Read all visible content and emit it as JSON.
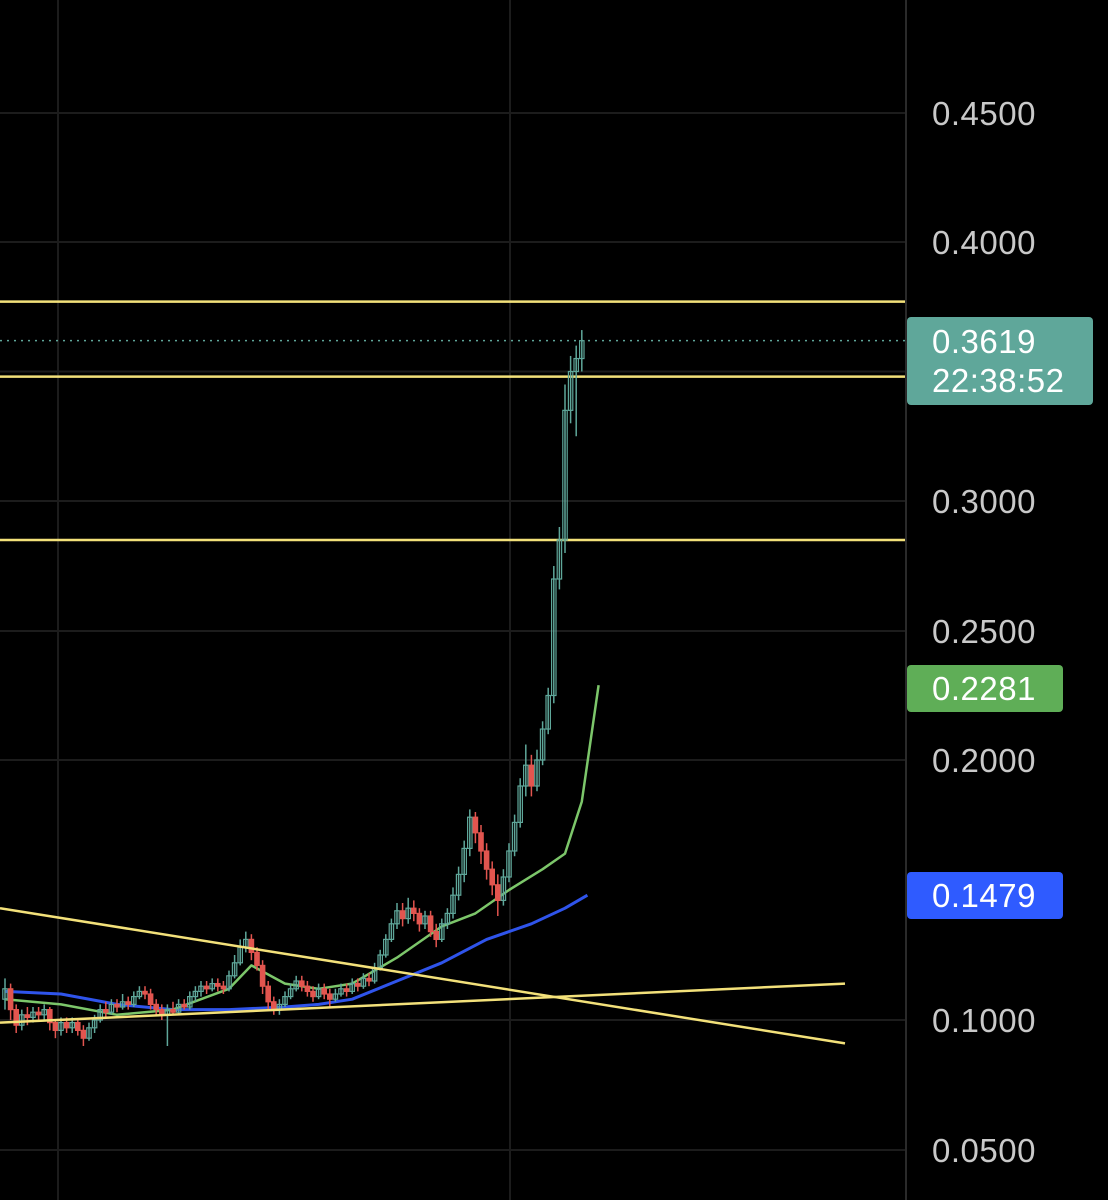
{
  "chart_data": {
    "type": "candlestick",
    "ylim": [
      0.035,
      0.495
    ],
    "y_ticks": [
      "0.4500",
      "0.4000",
      "0.3000",
      "0.2500",
      "0.2000",
      "0.1000",
      "0.0500"
    ],
    "grid": true,
    "colors": {
      "background": "#000000",
      "grid": "#1c1c1c",
      "up": "#5fa79a",
      "down": "#e2554f",
      "trendline": "#f3e17a",
      "ma_fast": "#7cc66a",
      "ma_slow": "#2f54eb",
      "last_price_tag": "#5fa79a",
      "ma_fast_tag": "#5fae57",
      "ma_slow_tag": "#2f5bff",
      "axis_text": "#c9c9c9"
    },
    "price_tag": {
      "value": "0.3619",
      "countdown": "22:38:52"
    },
    "ma_fast_tag": {
      "value": "0.2281"
    },
    "ma_slow_tag": {
      "value": "0.1479"
    },
    "horizontal_levels": [
      0.377,
      0.348,
      0.285
    ],
    "trendlines": [
      {
        "from": [
          0,
          0.143
        ],
        "to": [
          150,
          0.091
        ]
      },
      {
        "from": [
          0,
          0.099
        ],
        "to": [
          150,
          0.114
        ]
      }
    ],
    "candles": [
      [
        0.108,
        0.112,
        0.116,
        0.104
      ],
      [
        0.112,
        0.104,
        0.114,
        0.1
      ],
      [
        0.104,
        0.098,
        0.106,
        0.095
      ],
      [
        0.098,
        0.102,
        0.104,
        0.096
      ],
      [
        0.102,
        0.101,
        0.105,
        0.098
      ],
      [
        0.101,
        0.103,
        0.105,
        0.099
      ],
      [
        0.103,
        0.102,
        0.105,
        0.1
      ],
      [
        0.102,
        0.104,
        0.106,
        0.1
      ],
      [
        0.104,
        0.099,
        0.105,
        0.096
      ],
      [
        0.099,
        0.096,
        0.1,
        0.093
      ],
      [
        0.096,
        0.099,
        0.101,
        0.094
      ],
      [
        0.099,
        0.097,
        0.101,
        0.095
      ],
      [
        0.097,
        0.099,
        0.101,
        0.095
      ],
      [
        0.099,
        0.096,
        0.1,
        0.094
      ],
      [
        0.096,
        0.093,
        0.098,
        0.09
      ],
      [
        0.093,
        0.097,
        0.099,
        0.092
      ],
      [
        0.097,
        0.1,
        0.102,
        0.095
      ],
      [
        0.1,
        0.104,
        0.106,
        0.099
      ],
      [
        0.104,
        0.103,
        0.107,
        0.101
      ],
      [
        0.103,
        0.106,
        0.108,
        0.102
      ],
      [
        0.106,
        0.105,
        0.108,
        0.103
      ],
      [
        0.105,
        0.107,
        0.11,
        0.104
      ],
      [
        0.107,
        0.106,
        0.109,
        0.104
      ],
      [
        0.106,
        0.109,
        0.111,
        0.105
      ],
      [
        0.109,
        0.111,
        0.113,
        0.108
      ],
      [
        0.111,
        0.11,
        0.113,
        0.108
      ],
      [
        0.11,
        0.106,
        0.112,
        0.104
      ],
      [
        0.106,
        0.104,
        0.108,
        0.102
      ],
      [
        0.104,
        0.102,
        0.106,
        0.1
      ],
      [
        0.102,
        0.104,
        0.106,
        0.09
      ],
      [
        0.104,
        0.103,
        0.107,
        0.102
      ],
      [
        0.103,
        0.106,
        0.108,
        0.102
      ],
      [
        0.106,
        0.105,
        0.108,
        0.104
      ],
      [
        0.105,
        0.109,
        0.111,
        0.104
      ],
      [
        0.109,
        0.111,
        0.113,
        0.107
      ],
      [
        0.111,
        0.113,
        0.115,
        0.109
      ],
      [
        0.113,
        0.112,
        0.115,
        0.11
      ],
      [
        0.112,
        0.114,
        0.116,
        0.111
      ],
      [
        0.114,
        0.113,
        0.116,
        0.111
      ],
      [
        0.113,
        0.112,
        0.115,
        0.11
      ],
      [
        0.112,
        0.117,
        0.119,
        0.111
      ],
      [
        0.117,
        0.122,
        0.125,
        0.116
      ],
      [
        0.122,
        0.128,
        0.131,
        0.121
      ],
      [
        0.128,
        0.131,
        0.134,
        0.126
      ],
      [
        0.131,
        0.126,
        0.133,
        0.123
      ],
      [
        0.126,
        0.121,
        0.128,
        0.119
      ],
      [
        0.121,
        0.113,
        0.123,
        0.11
      ],
      [
        0.113,
        0.107,
        0.115,
        0.104
      ],
      [
        0.107,
        0.104,
        0.109,
        0.102
      ],
      [
        0.104,
        0.106,
        0.108,
        0.102
      ],
      [
        0.106,
        0.109,
        0.111,
        0.105
      ],
      [
        0.109,
        0.112,
        0.114,
        0.108
      ],
      [
        0.112,
        0.115,
        0.117,
        0.111
      ],
      [
        0.115,
        0.113,
        0.117,
        0.111
      ],
      [
        0.113,
        0.111,
        0.115,
        0.109
      ],
      [
        0.111,
        0.109,
        0.113,
        0.107
      ],
      [
        0.109,
        0.112,
        0.114,
        0.108
      ],
      [
        0.112,
        0.11,
        0.114,
        0.108
      ],
      [
        0.11,
        0.108,
        0.112,
        0.105
      ],
      [
        0.108,
        0.11,
        0.112,
        0.107
      ],
      [
        0.11,
        0.112,
        0.114,
        0.109
      ],
      [
        0.112,
        0.111,
        0.114,
        0.109
      ],
      [
        0.111,
        0.114,
        0.116,
        0.11
      ],
      [
        0.114,
        0.113,
        0.116,
        0.111
      ],
      [
        0.113,
        0.116,
        0.118,
        0.112
      ],
      [
        0.116,
        0.115,
        0.118,
        0.113
      ],
      [
        0.115,
        0.12,
        0.122,
        0.114
      ],
      [
        0.12,
        0.125,
        0.127,
        0.119
      ],
      [
        0.125,
        0.131,
        0.133,
        0.124
      ],
      [
        0.131,
        0.137,
        0.139,
        0.13
      ],
      [
        0.137,
        0.142,
        0.145,
        0.135
      ],
      [
        0.142,
        0.139,
        0.145,
        0.136
      ],
      [
        0.139,
        0.143,
        0.147,
        0.137
      ],
      [
        0.143,
        0.141,
        0.146,
        0.138
      ],
      [
        0.141,
        0.137,
        0.143,
        0.134
      ],
      [
        0.137,
        0.14,
        0.142,
        0.135
      ],
      [
        0.14,
        0.134,
        0.142,
        0.132
      ],
      [
        0.134,
        0.131,
        0.137,
        0.128
      ],
      [
        0.131,
        0.137,
        0.139,
        0.13
      ],
      [
        0.137,
        0.141,
        0.143,
        0.135
      ],
      [
        0.141,
        0.148,
        0.151,
        0.139
      ],
      [
        0.148,
        0.156,
        0.159,
        0.146
      ],
      [
        0.156,
        0.166,
        0.169,
        0.153
      ],
      [
        0.166,
        0.178,
        0.181,
        0.163
      ],
      [
        0.178,
        0.172,
        0.18,
        0.168
      ],
      [
        0.172,
        0.165,
        0.175,
        0.16
      ],
      [
        0.165,
        0.158,
        0.168,
        0.154
      ],
      [
        0.158,
        0.152,
        0.161,
        0.148
      ],
      [
        0.152,
        0.146,
        0.156,
        0.14
      ],
      [
        0.146,
        0.155,
        0.158,
        0.144
      ],
      [
        0.155,
        0.165,
        0.168,
        0.153
      ],
      [
        0.165,
        0.176,
        0.179,
        0.163
      ],
      [
        0.176,
        0.19,
        0.193,
        0.174
      ],
      [
        0.19,
        0.198,
        0.206,
        0.186
      ],
      [
        0.198,
        0.19,
        0.202,
        0.186
      ],
      [
        0.19,
        0.2,
        0.204,
        0.188
      ],
      [
        0.2,
        0.212,
        0.215,
        0.198
      ],
      [
        0.212,
        0.225,
        0.228,
        0.21
      ],
      [
        0.225,
        0.27,
        0.275,
        0.222
      ],
      [
        0.27,
        0.285,
        0.29,
        0.266
      ],
      [
        0.285,
        0.335,
        0.345,
        0.28
      ],
      [
        0.335,
        0.35,
        0.356,
        0.33
      ],
      [
        0.35,
        0.355,
        0.36,
        0.325
      ],
      [
        0.355,
        0.3619,
        0.366,
        0.35
      ]
    ],
    "ma_fast": [
      [
        0,
        0.108
      ],
      [
        10,
        0.106
      ],
      [
        20,
        0.102
      ],
      [
        30,
        0.104
      ],
      [
        40,
        0.112
      ],
      [
        44,
        0.121
      ],
      [
        50,
        0.114
      ],
      [
        56,
        0.112
      ],
      [
        62,
        0.114
      ],
      [
        70,
        0.124
      ],
      [
        78,
        0.136
      ],
      [
        84,
        0.141
      ],
      [
        90,
        0.15
      ],
      [
        96,
        0.158
      ],
      [
        100,
        0.164
      ],
      [
        103,
        0.184
      ],
      [
        106,
        0.229
      ]
    ],
    "ma_slow": [
      [
        0,
        0.111
      ],
      [
        10,
        0.11
      ],
      [
        20,
        0.106
      ],
      [
        30,
        0.104
      ],
      [
        40,
        0.104
      ],
      [
        50,
        0.105
      ],
      [
        56,
        0.106
      ],
      [
        62,
        0.108
      ],
      [
        70,
        0.115
      ],
      [
        78,
        0.122
      ],
      [
        86,
        0.131
      ],
      [
        94,
        0.137
      ],
      [
        100,
        0.143
      ],
      [
        104,
        0.148
      ]
    ]
  }
}
